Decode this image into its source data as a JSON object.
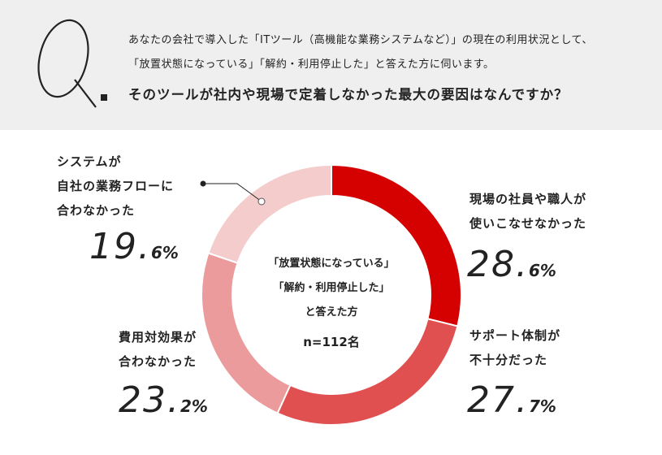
{
  "question": {
    "q_letter": "Q.",
    "line1": "あなたの会社で導入した「ITツール（高機能な業務システムなど）」の現在の利用状況として、",
    "line2": "「放置状態になっている」「解約・利用停止した」と答えた方に伺います。",
    "main": "そのツールが社内や現場で定着しなかった最大の要因はなんですか？"
  },
  "center": {
    "line1": "「放置状態になっている」",
    "line2": "「解約・利用停止した」",
    "line3": "と答えた方",
    "n": "n=112名"
  },
  "labels": {
    "s1": {
      "line1": "現場の社員や職人が",
      "line2": "使いこなせなかった",
      "pct_int": "28.",
      "pct_dec": "6%"
    },
    "s2": {
      "line1": "サポート体制が",
      "line2": "不十分だった",
      "pct_int": "27.",
      "pct_dec": "7%"
    },
    "s3": {
      "line1": "費用対効果が",
      "line2": "合わなかった",
      "pct_int": "23.",
      "pct_dec": "2%"
    },
    "s4": {
      "line1": "システムが",
      "line2": "自社の業務フローに",
      "line3": "合わなかった",
      "pct_int": "19.",
      "pct_dec": "6%"
    }
  },
  "chart_data": {
    "type": "pie",
    "donut": true,
    "start": "top",
    "direction": "clockwise",
    "slices": [
      {
        "label": "現場の社員や職人が使いこなせなかった",
        "value": 28.6,
        "color": "#d50000"
      },
      {
        "label": "サポート体制が不十分だった",
        "value": 27.7,
        "color": "#e05050"
      },
      {
        "label": "費用対効果が合わなかった",
        "value": 23.2,
        "color": "#eb9b9b"
      },
      {
        "label": "システムが自社の業務フローに合わなかった",
        "value": 19.6,
        "color": "#f4cccc"
      }
    ]
  }
}
